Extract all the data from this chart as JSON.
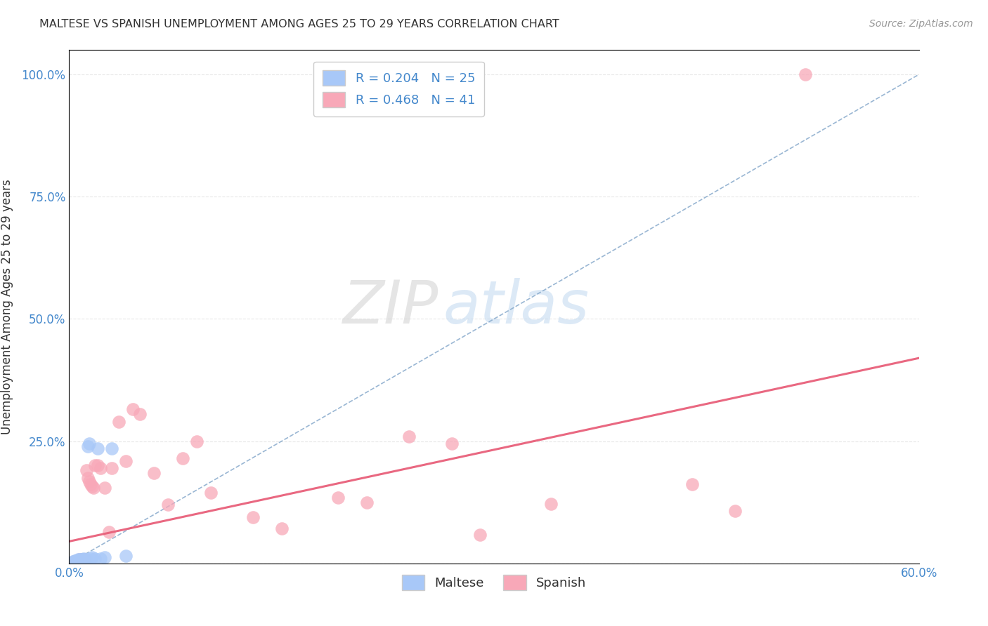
{
  "title": "MALTESE VS SPANISH UNEMPLOYMENT AMONG AGES 25 TO 29 YEARS CORRELATION CHART",
  "source": "Source: ZipAtlas.com",
  "ylabel": "Unemployment Among Ages 25 to 29 years",
  "xlim": [
    0.0,
    0.6
  ],
  "ylim": [
    0.0,
    1.05
  ],
  "xticks": [
    0.0,
    0.1,
    0.2,
    0.3,
    0.4,
    0.5,
    0.6
  ],
  "xticklabels": [
    "0.0%",
    "",
    "",
    "",
    "",
    "",
    "60.0%"
  ],
  "yticks": [
    0.0,
    0.25,
    0.5,
    0.75,
    1.0
  ],
  "yticklabels": [
    "",
    "25.0%",
    "50.0%",
    "75.0%",
    "100.0%"
  ],
  "maltese_R": "0.204",
  "maltese_N": "25",
  "spanish_R": "0.468",
  "spanish_N": "41",
  "maltese_color": "#a8c8f8",
  "spanish_color": "#f8a8b8",
  "spanish_line_color": "#e8607a",
  "dashed_line_color": "#88aacc",
  "tick_color": "#4488cc",
  "title_color": "#333333",
  "source_color": "#999999",
  "grid_color": "#e8e8e8",
  "background_color": "#ffffff",
  "watermark_zip_color": "#d0d0d0",
  "watermark_atlas_color": "#c0d8f0",
  "maltese_x": [
    0.003,
    0.004,
    0.005,
    0.006,
    0.006,
    0.007,
    0.007,
    0.008,
    0.008,
    0.009,
    0.009,
    0.01,
    0.01,
    0.011,
    0.012,
    0.013,
    0.014,
    0.015,
    0.016,
    0.018,
    0.02,
    0.022,
    0.025,
    0.03,
    0.04
  ],
  "maltese_y": [
    0.004,
    0.005,
    0.006,
    0.007,
    0.008,
    0.007,
    0.008,
    0.006,
    0.009,
    0.008,
    0.009,
    0.007,
    0.01,
    0.008,
    0.009,
    0.24,
    0.245,
    0.01,
    0.012,
    0.01,
    0.235,
    0.01,
    0.012,
    0.235,
    0.015
  ],
  "spanish_x": [
    0.004,
    0.005,
    0.006,
    0.007,
    0.007,
    0.008,
    0.009,
    0.01,
    0.011,
    0.012,
    0.013,
    0.014,
    0.015,
    0.016,
    0.017,
    0.018,
    0.02,
    0.022,
    0.025,
    0.028,
    0.03,
    0.035,
    0.04,
    0.045,
    0.05,
    0.06,
    0.07,
    0.08,
    0.09,
    0.1,
    0.13,
    0.15,
    0.19,
    0.21,
    0.24,
    0.27,
    0.29,
    0.34,
    0.44,
    0.47,
    0.52
  ],
  "spanish_y": [
    0.004,
    0.005,
    0.006,
    0.007,
    0.008,
    0.007,
    0.008,
    0.007,
    0.008,
    0.19,
    0.175,
    0.168,
    0.162,
    0.158,
    0.155,
    0.2,
    0.2,
    0.195,
    0.155,
    0.065,
    0.195,
    0.29,
    0.21,
    0.315,
    0.305,
    0.185,
    0.12,
    0.215,
    0.25,
    0.145,
    0.095,
    0.072,
    0.135,
    0.125,
    0.26,
    0.245,
    0.058,
    0.122,
    0.162,
    0.108,
    1.0
  ],
  "spanish_trend_x": [
    0.0,
    0.6
  ],
  "spanish_trend_y": [
    0.045,
    0.42
  ],
  "dashed_line_x": [
    0.0,
    0.6
  ],
  "dashed_line_y": [
    0.0,
    1.0
  ]
}
